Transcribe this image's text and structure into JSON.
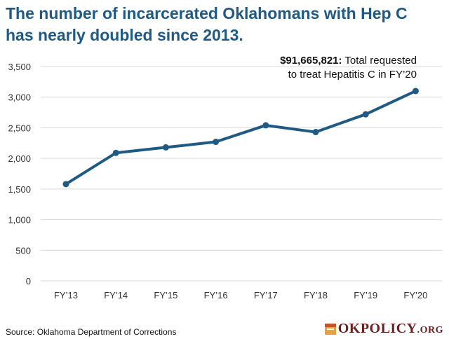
{
  "title": {
    "line1": "The number of incarcerated Oklahomans with Hep C",
    "line2": "has nearly doubled since 2013."
  },
  "annotation": {
    "amount": "$91,665,821:",
    "text_a": "Total requested",
    "text_b": "to treat Hepatitis C in FY’20"
  },
  "source": "Source: Oklahoma Department of Corrections",
  "logo": {
    "name": "OKPOLICY",
    "suffix": ".ORG"
  },
  "colors": {
    "accent": "#1e5a84",
    "title": "#1e5a84",
    "logo": "#6b1f1f"
  },
  "chart_data": {
    "type": "line",
    "categories": [
      "FY’13",
      "FY’14",
      "FY’15",
      "FY’16",
      "FY’17",
      "FY’18",
      "FY’19",
      "FY’20"
    ],
    "series": [
      {
        "name": "Incarcerated Oklahomans with Hep C",
        "values": [
          1580,
          2090,
          2180,
          2270,
          2540,
          2430,
          2720,
          3100
        ]
      }
    ],
    "yticks": [
      "0",
      "500",
      "1,000",
      "1,500",
      "2,000",
      "2,500",
      "3,000",
      "3,500"
    ],
    "ylim": [
      0,
      3500
    ],
    "grid": true,
    "xlabel": "",
    "ylabel": ""
  }
}
